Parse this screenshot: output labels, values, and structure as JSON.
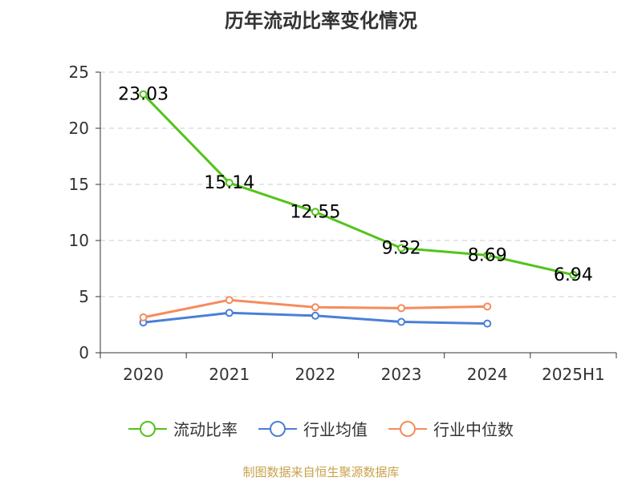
{
  "chart_data": {
    "type": "line",
    "title": "历年流动比率变化情况",
    "categories": [
      "2020",
      "2021",
      "2022",
      "2023",
      "2024",
      "2025H1"
    ],
    "ylim": [
      0,
      25
    ],
    "yticks": [
      0,
      5,
      10,
      15,
      20,
      25
    ],
    "grid": true,
    "legend_position": "bottom",
    "series": [
      {
        "name": "流动比率",
        "color": "#52c41a",
        "values": [
          23.03,
          15.14,
          12.55,
          9.32,
          8.69,
          6.94
        ],
        "labels": [
          "23.03",
          "15.14",
          "12.55",
          "9.32",
          "8.69",
          "6.94"
        ]
      },
      {
        "name": "行业均值",
        "color": "#4a7fd8",
        "values": [
          2.7,
          3.55,
          3.3,
          2.75,
          2.6,
          null
        ]
      },
      {
        "name": "行业中位数",
        "color": "#f58c5c",
        "values": [
          3.15,
          4.7,
          4.05,
          3.97,
          4.12,
          null
        ]
      }
    ]
  },
  "footer": {
    "source": "制图数据来自恒生聚源数据库"
  }
}
